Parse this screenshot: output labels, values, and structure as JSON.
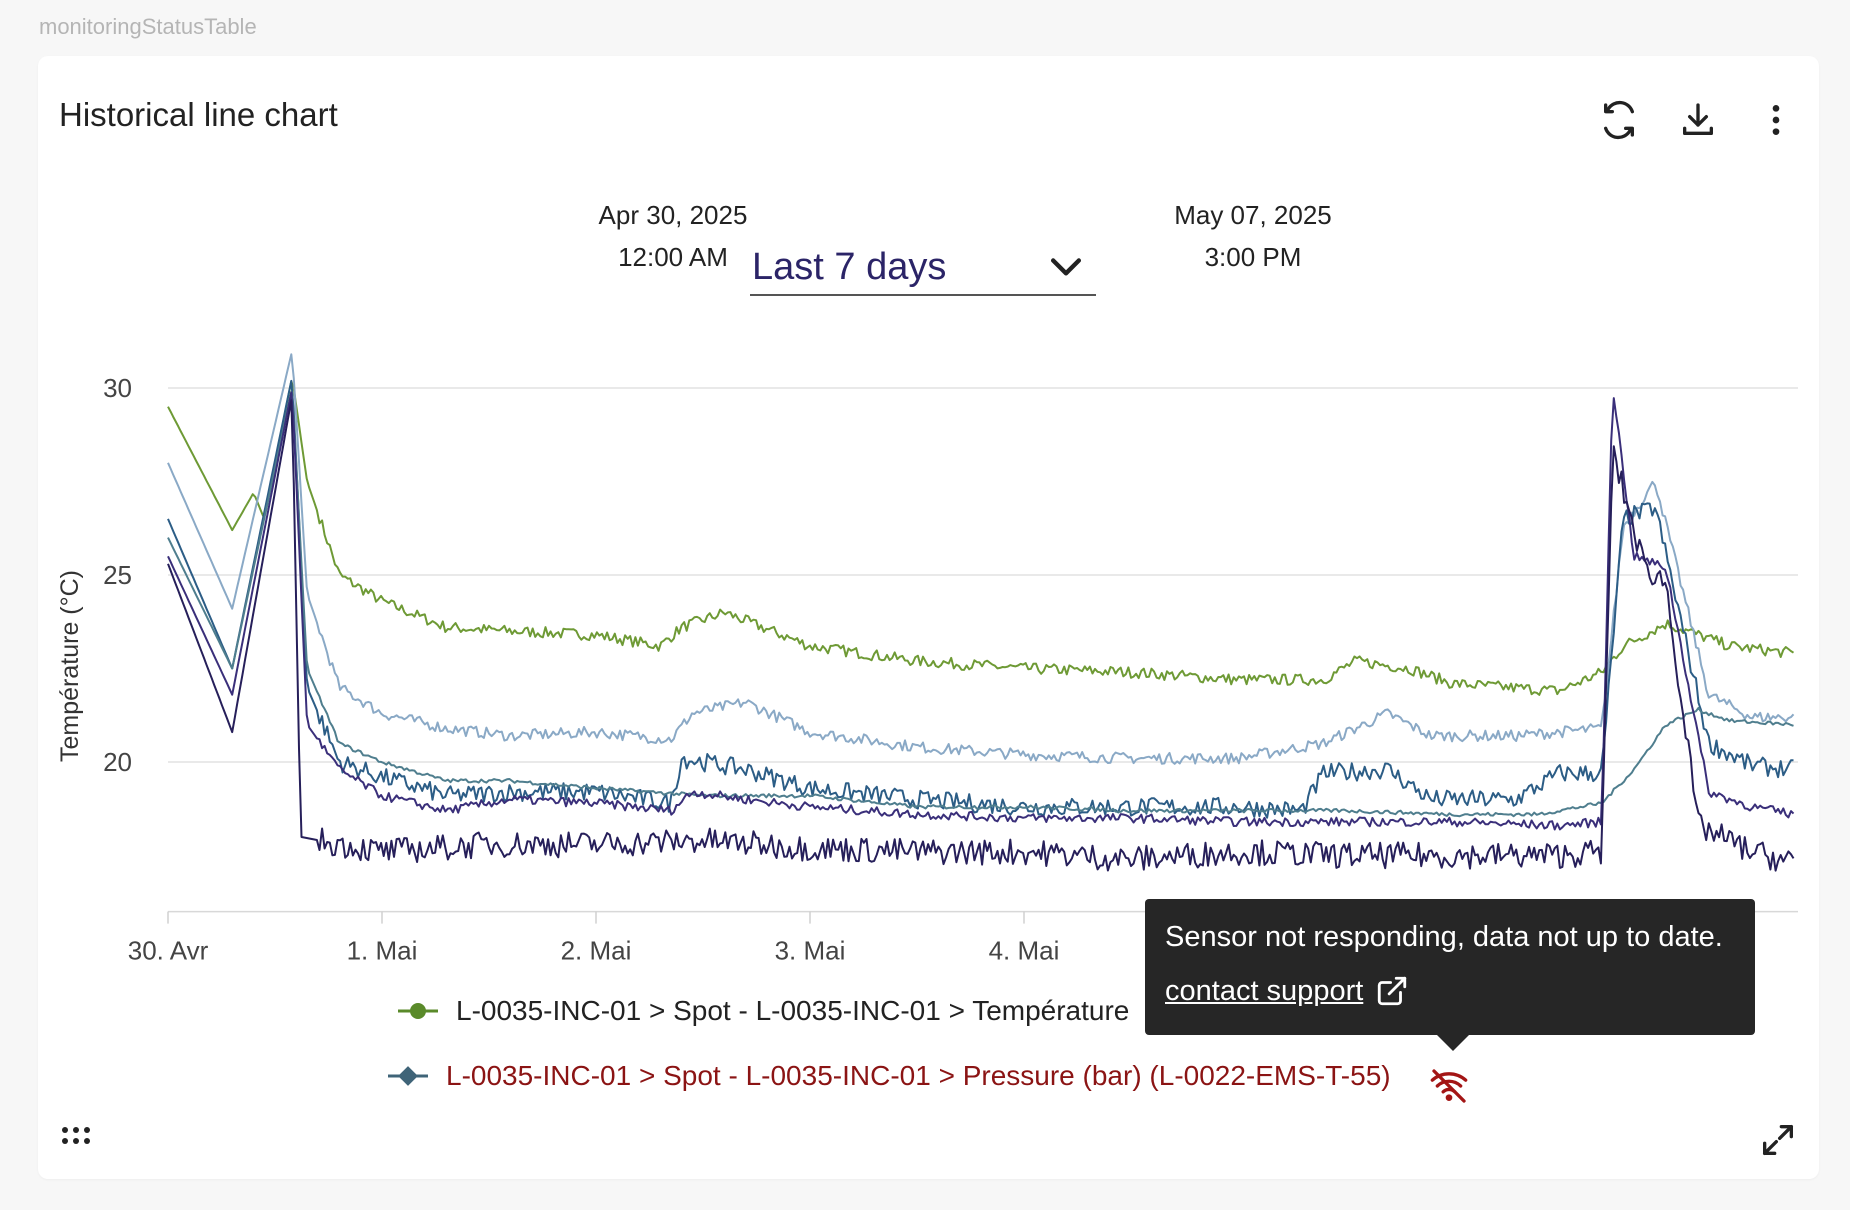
{
  "widget_tag": "monitoringStatusTable",
  "card": {
    "title": "Historical line chart",
    "toolbar": {
      "refresh_icon": "refresh-icon",
      "download_icon": "download-icon",
      "menu_icon": "more-vertical-icon"
    }
  },
  "range": {
    "start_date": "Apr 30, 2025",
    "start_time": "12:00 AM",
    "end_date": "May 07, 2025",
    "end_time": "3:00 PM",
    "selected": "Last 7 days"
  },
  "legend": [
    {
      "label": "L-0035-INC-01 > Spot - L-0035-INC-01 > Température",
      "color": "#5a8a2a",
      "text_color": "#222222",
      "marker": "circle"
    },
    {
      "label": "L-0035-INC-01 > Spot - L-0035-INC-01 > Pressure (bar) (L-0022-EMS-T-55)",
      "color": "#3f6478",
      "text_color": "#8b1414",
      "marker": "diamond",
      "status_icon": "no-signal-icon"
    }
  ],
  "tooltip": {
    "message": "Sensor not responding, data not up to date.",
    "link": "contact support",
    "link_icon": "external-link-icon"
  },
  "footer": {
    "drag_icon": "drag-handle-icon",
    "expand_icon": "expand-icon"
  },
  "chart_data": {
    "type": "line",
    "ylabel": "Température (°C)",
    "xlabel": "",
    "y_ticks": [
      20,
      25,
      30
    ],
    "ylim": [
      16,
      31.8
    ],
    "x_ticks": [
      {
        "x": 0,
        "label": "30. Avr"
      },
      {
        "x": 1,
        "label": "1. Mai"
      },
      {
        "x": 2,
        "label": "2. Mai"
      },
      {
        "x": 3,
        "label": "3. Mai"
      },
      {
        "x": 4,
        "label": "4. Mai"
      }
    ],
    "xlim": [
      0,
      7.6
    ],
    "grid": true,
    "series": [
      {
        "color": "#6e9a35",
        "noise": 0.15,
        "points": [
          [
            0,
            29.5
          ],
          [
            0.3,
            26.2
          ],
          [
            0.4,
            27.2
          ],
          [
            0.45,
            26.5
          ],
          [
            0.58,
            30.3
          ],
          [
            0.65,
            27.5
          ],
          [
            0.8,
            25.0
          ],
          [
            1.0,
            24.3
          ],
          [
            1.3,
            23.6
          ],
          [
            1.6,
            23.5
          ],
          [
            2.0,
            23.4
          ],
          [
            2.3,
            23.1
          ],
          [
            2.4,
            23.6
          ],
          [
            2.6,
            24.0
          ],
          [
            3.0,
            23.1
          ],
          [
            3.5,
            22.7
          ],
          [
            4.0,
            22.5
          ],
          [
            4.5,
            22.4
          ],
          [
            5.0,
            22.2
          ],
          [
            5.4,
            22.2
          ],
          [
            5.55,
            22.7
          ],
          [
            5.8,
            22.5
          ],
          [
            6.0,
            22.1
          ],
          [
            6.5,
            21.9
          ],
          [
            6.7,
            22.4
          ],
          [
            6.8,
            23.1
          ],
          [
            7.0,
            23.7
          ],
          [
            7.3,
            23.1
          ],
          [
            7.6,
            22.9
          ]
        ]
      },
      {
        "color": "#8aa9c6",
        "noise": 0.15,
        "points": [
          [
            0,
            28.0
          ],
          [
            0.3,
            24.1
          ],
          [
            0.58,
            31.0
          ],
          [
            0.65,
            24.5
          ],
          [
            0.8,
            22.0
          ],
          [
            1.0,
            21.3
          ],
          [
            1.3,
            20.9
          ],
          [
            1.6,
            20.7
          ],
          [
            2.0,
            20.8
          ],
          [
            2.35,
            20.6
          ],
          [
            2.45,
            21.3
          ],
          [
            2.7,
            21.6
          ],
          [
            3.0,
            20.8
          ],
          [
            3.5,
            20.4
          ],
          [
            4.0,
            20.2
          ],
          [
            4.5,
            20.1
          ],
          [
            5.0,
            20.1
          ],
          [
            5.4,
            20.5
          ],
          [
            5.7,
            21.3
          ],
          [
            5.9,
            20.7
          ],
          [
            6.3,
            20.7
          ],
          [
            6.7,
            20.9
          ],
          [
            6.8,
            26.3
          ],
          [
            6.95,
            27.5
          ],
          [
            7.2,
            21.8
          ],
          [
            7.4,
            21.2
          ],
          [
            7.6,
            21.2
          ]
        ]
      },
      {
        "color": "#2c5d86",
        "noise": 0.25,
        "points": [
          [
            0,
            26.5
          ],
          [
            0.3,
            22.5
          ],
          [
            0.58,
            30.3
          ],
          [
            0.65,
            22.0
          ],
          [
            0.8,
            20.0
          ],
          [
            1.0,
            19.6
          ],
          [
            1.3,
            19.1
          ],
          [
            1.6,
            19.2
          ],
          [
            2.0,
            19.2
          ],
          [
            2.35,
            18.9
          ],
          [
            2.4,
            20.1
          ],
          [
            2.7,
            19.8
          ],
          [
            3.0,
            19.3
          ],
          [
            3.5,
            19.0
          ],
          [
            4.0,
            18.8
          ],
          [
            4.5,
            18.8
          ],
          [
            5.0,
            18.8
          ],
          [
            5.3,
            18.7
          ],
          [
            5.4,
            19.7
          ],
          [
            5.7,
            19.8
          ],
          [
            5.9,
            19.0
          ],
          [
            6.3,
            19.0
          ],
          [
            6.5,
            19.7
          ],
          [
            6.7,
            19.7
          ],
          [
            6.8,
            26.5
          ],
          [
            6.95,
            26.8
          ],
          [
            7.2,
            20.5
          ],
          [
            7.4,
            19.9
          ],
          [
            7.6,
            19.8
          ]
        ]
      },
      {
        "color": "#4f7e8e",
        "noise": 0.05,
        "points": [
          [
            0,
            26.0
          ],
          [
            0.3,
            22.5
          ],
          [
            0.58,
            30.0
          ],
          [
            0.65,
            22.5
          ],
          [
            0.8,
            20.5
          ],
          [
            1.0,
            20.0
          ],
          [
            1.3,
            19.5
          ],
          [
            1.6,
            19.5
          ],
          [
            2.0,
            19.3
          ],
          [
            2.5,
            19.1
          ],
          [
            3.0,
            19.1
          ],
          [
            3.5,
            18.8
          ],
          [
            4.0,
            18.8
          ],
          [
            4.5,
            18.7
          ],
          [
            5.0,
            18.7
          ],
          [
            5.5,
            18.7
          ],
          [
            6.0,
            18.6
          ],
          [
            6.4,
            18.6
          ],
          [
            6.7,
            18.9
          ],
          [
            6.85,
            19.8
          ],
          [
            7.0,
            21.0
          ],
          [
            7.15,
            21.4
          ],
          [
            7.3,
            21.1
          ],
          [
            7.6,
            21.0
          ]
        ]
      },
      {
        "color": "#3a2f7a",
        "noise": 0.12,
        "points": [
          [
            0,
            25.5
          ],
          [
            0.3,
            21.8
          ],
          [
            0.58,
            30.0
          ],
          [
            0.65,
            21.0
          ],
          [
            0.8,
            19.8
          ],
          [
            1.0,
            19.1
          ],
          [
            1.3,
            18.7
          ],
          [
            1.6,
            19.0
          ],
          [
            2.0,
            18.9
          ],
          [
            2.35,
            18.7
          ],
          [
            2.45,
            19.2
          ],
          [
            2.7,
            19.0
          ],
          [
            3.0,
            18.8
          ],
          [
            3.5,
            18.6
          ],
          [
            4.0,
            18.5
          ],
          [
            4.5,
            18.5
          ],
          [
            5.0,
            18.4
          ],
          [
            5.5,
            18.4
          ],
          [
            6.0,
            18.4
          ],
          [
            6.5,
            18.3
          ],
          [
            6.7,
            18.4
          ],
          [
            6.75,
            30.1
          ],
          [
            6.85,
            25.5
          ],
          [
            7.0,
            25.2
          ],
          [
            7.2,
            19.2
          ],
          [
            7.4,
            18.8
          ],
          [
            7.6,
            18.6
          ]
        ]
      },
      {
        "color": "#261f5a",
        "noise": 0.35,
        "points": [
          [
            0,
            25.3
          ],
          [
            0.3,
            20.8
          ],
          [
            0.58,
            29.8
          ],
          [
            0.62,
            18.0
          ],
          [
            0.8,
            17.8
          ],
          [
            1.0,
            17.6
          ],
          [
            1.5,
            17.8
          ],
          [
            2.0,
            17.8
          ],
          [
            2.5,
            17.9
          ],
          [
            3.0,
            17.7
          ],
          [
            3.5,
            17.6
          ],
          [
            4.0,
            17.6
          ],
          [
            4.5,
            17.4
          ],
          [
            5.0,
            17.6
          ],
          [
            5.5,
            17.5
          ],
          [
            6.0,
            17.5
          ],
          [
            6.5,
            17.5
          ],
          [
            6.7,
            17.6
          ],
          [
            6.75,
            28.3
          ],
          [
            6.9,
            25.2
          ],
          [
            7.0,
            24.8
          ],
          [
            7.15,
            18.3
          ],
          [
            7.4,
            17.6
          ],
          [
            7.6,
            17.3
          ]
        ]
      }
    ]
  }
}
